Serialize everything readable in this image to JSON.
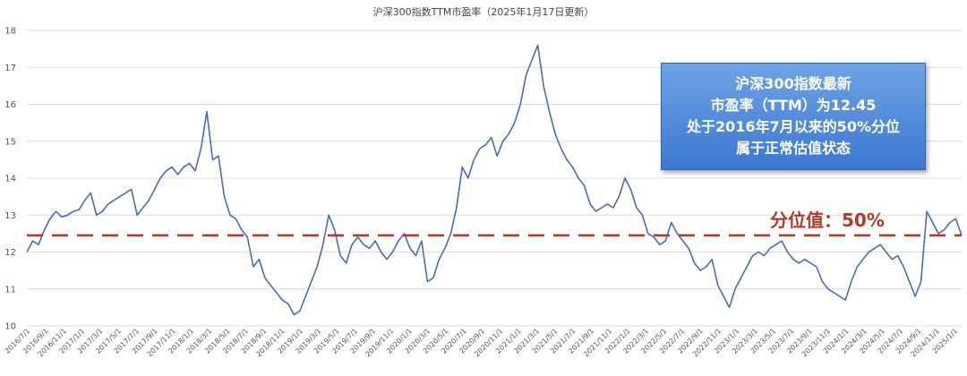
{
  "chart_data": {
    "type": "line",
    "title": "沪深300指数TTM市盈率（2025年1月17日更新）",
    "xlabel": "",
    "ylabel": "",
    "ylim": [
      10,
      18
    ],
    "yticks": [
      "10",
      "11",
      "12",
      "13",
      "14",
      "15",
      "16",
      "17",
      "18"
    ],
    "grid": true,
    "legend": "none",
    "x_tick_labels": [
      "2016/7/1",
      "2016/9/1",
      "2016/11/1",
      "2017/1/1",
      "2017/3/1",
      "2017/5/1",
      "2017/7/1",
      "2017/9/1",
      "2017/11/1",
      "2018/1/1",
      "2018/3/1",
      "2018/5/1",
      "2018/7/1",
      "2018/9/1",
      "2018/11/1",
      "2019/1/1",
      "2019/3/1",
      "2019/5/1",
      "2019/7/1",
      "2019/9/1",
      "2019/11/1",
      "2020/1/1",
      "2020/3/1",
      "2020/5/1",
      "2020/7/1",
      "2020/9/1",
      "2020/11/1",
      "2021/1/1",
      "2021/3/1",
      "2021/5/1",
      "2021/7/1",
      "2021/9/1",
      "2021/11/1",
      "2022/1/1",
      "2022/3/1",
      "2022/5/1",
      "2022/7/1",
      "2022/9/1",
      "2022/11/1",
      "2023/1/1",
      "2023/3/1",
      "2023/5/1",
      "2023/7/1",
      "2023/9/1",
      "2023/11/1",
      "2024/1/1",
      "2024/3/1",
      "2024/5/1",
      "2024/7/1",
      "2024/9/1",
      "2024/11/1",
      "2025/1/1"
    ],
    "series": [
      {
        "values": [
          12.0,
          12.3,
          12.2,
          12.6,
          12.9,
          13.1,
          12.95,
          13.0,
          13.1,
          13.15,
          13.4,
          13.6,
          13.0,
          13.1,
          13.3,
          13.4,
          13.5,
          13.6,
          13.7,
          13.0,
          13.2,
          13.4,
          13.7,
          14.0,
          14.2,
          14.3,
          14.1,
          14.3,
          14.4,
          14.2,
          14.8,
          15.8,
          14.5,
          14.6,
          13.5,
          13.0,
          12.9,
          12.6,
          12.4,
          11.6,
          11.8,
          11.3,
          11.1,
          10.9,
          10.7,
          10.6,
          10.3,
          10.4,
          10.8,
          11.2,
          11.6,
          12.2,
          13.0,
          12.6,
          11.9,
          11.7,
          12.2,
          12.4,
          12.2,
          12.1,
          12.3,
          12.0,
          11.8,
          12.0,
          12.3,
          12.5,
          12.1,
          11.9,
          12.3,
          11.2,
          11.3,
          11.8,
          12.1,
          12.5,
          13.2,
          14.3,
          14.0,
          14.5,
          14.8,
          14.9,
          15.1,
          14.6,
          15.0,
          15.2,
          15.5,
          16.0,
          16.8,
          17.2,
          17.6,
          16.5,
          15.8,
          15.2,
          14.8,
          14.5,
          14.3,
          14.0,
          13.8,
          13.3,
          13.1,
          13.2,
          13.3,
          13.2,
          13.5,
          14.0,
          13.7,
          13.2,
          13.0,
          12.5,
          12.4,
          12.2,
          12.3,
          12.8,
          12.5,
          12.3,
          12.1,
          11.7,
          11.5,
          11.6,
          11.8,
          11.1,
          10.8,
          10.5,
          11.0,
          11.3,
          11.6,
          11.9,
          12.0,
          11.9,
          12.1,
          12.2,
          12.3,
          12.0,
          11.8,
          11.7,
          11.8,
          11.7,
          11.6,
          11.2,
          11.0,
          10.9,
          10.8,
          10.7,
          11.2,
          11.6,
          11.8,
          12.0,
          12.1,
          12.2,
          12.0,
          11.8,
          11.9,
          11.6,
          11.2,
          10.8,
          11.2,
          13.1,
          12.8,
          12.5,
          12.6,
          12.8,
          12.9,
          12.45
        ]
      }
    ],
    "reference_line": {
      "value": 12.45,
      "label": "分位值：50%"
    },
    "callout": [
      "沪深300指数最新",
      "市盈率（TTM）为12.45",
      "处于2016年7月以来的50%分位",
      "属于正常估值状态"
    ]
  },
  "colors": {
    "line": "#4a6cb5",
    "reference": "#b33a26",
    "callout_top": "#6ea3e6",
    "callout_bottom": "#3b78d1",
    "grid": "#dcdcdc"
  }
}
